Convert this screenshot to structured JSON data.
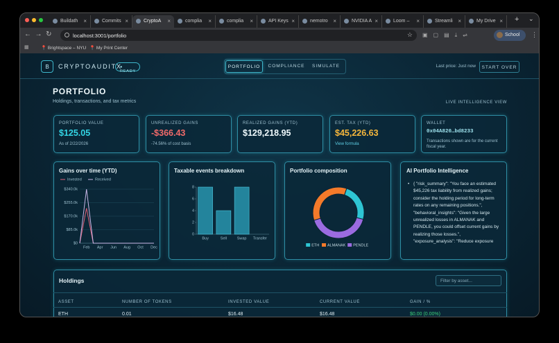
{
  "browser": {
    "tabs": [
      "Buildath",
      "Commits",
      "CryptoA",
      "complia",
      "complia",
      "API Keys",
      "nemotro",
      "NVIDIA A",
      "Loom –",
      "Streamli",
      "My Drive"
    ],
    "address": "localhost:3001/portfolio",
    "profile": "School",
    "bookmarks": [
      "Brightspace – NYU",
      "My Print Center"
    ]
  },
  "header": {
    "logo": "B",
    "brand": "CRYPTOAUDITX",
    "status": "READY",
    "nav": [
      "PORTFOLIO",
      "COMPLIANCE",
      "SIMULATE"
    ],
    "last_price": "Last price: Just now",
    "button": "START OVER"
  },
  "page": {
    "title": "PORTFOLIO",
    "subtitle": "Holdings, transactions, and tax metrics",
    "view_label": "LIVE INTELLIGENCE VIEW"
  },
  "cards": [
    {
      "label": "PORTFOLIO VALUE",
      "value": "$125.05",
      "note": "As of 2/22/2026"
    },
    {
      "label": "UNREALIZED GAINS",
      "value": "-$366.43",
      "note": "-74.56% of cost basis"
    },
    {
      "label": "REALIZED GAINS (YTD)",
      "value": "$129,218.95"
    },
    {
      "label": "EST. TAX (YTD)",
      "value": "$45,226.63",
      "note": "View formula"
    },
    {
      "label": "WALLET",
      "value": "0x04A820…bd8233",
      "note": "Transactions shown are for the current fiscal year."
    }
  ],
  "chart_data": [
    {
      "type": "line",
      "title": "Gains over time (YTD)",
      "categories": [
        null,
        "Feb",
        null,
        "Apr",
        null,
        "Jun",
        null,
        "Aug",
        null,
        "Oct",
        null,
        "Dec"
      ],
      "series": [
        {
          "name": "Invested",
          "color": "#e0607a",
          "values": [
            0,
            220000,
            0,
            0,
            0,
            0,
            0,
            0,
            0,
            0,
            0,
            0
          ]
        },
        {
          "name": "Received",
          "color": "#c9b8e8",
          "values": [
            0,
            340000,
            0,
            0,
            0,
            0,
            0,
            0,
            0,
            0,
            0,
            0
          ]
        }
      ],
      "ylim": [
        0,
        340000
      ],
      "yticks": [
        {
          "value": 0,
          "label": "$0"
        },
        {
          "value": 85000,
          "label": "$85.0k"
        },
        {
          "value": 170000,
          "label": "$170.0k"
        },
        {
          "value": 255000,
          "label": "$255.0k"
        },
        {
          "value": 340000,
          "label": "$340.0k"
        }
      ],
      "grid": true
    },
    {
      "type": "bar",
      "title": "Taxable events breakdown",
      "categories": [
        "Buy",
        "Sell",
        "Swap",
        "Transfer"
      ],
      "values": [
        8,
        4,
        8,
        0
      ],
      "color": "#23849c",
      "ylim": [
        0,
        8
      ],
      "yticks": [
        0,
        2,
        4,
        6,
        8
      ],
      "grid": false
    },
    {
      "type": "pie",
      "title": "Portfolio composition",
      "categories": [
        "ETH",
        "ALMANAK",
        "PENDLE"
      ],
      "values": [
        24,
        35,
        41
      ],
      "colors": [
        "#2ec5d3",
        "#f47a2a",
        "#9b6be0"
      ]
    }
  ],
  "intelligence": {
    "title": "AI Portfolio Intelligence",
    "text": "{ \"risk_summary\": \"You face an estimated $45,226 tax liability from realized gains; consider the holding period for long-term rates on any remaining positions.\", \"behavioral_insights\": \"Given the large unrealized losses in ALMANAK and PENDLE, you could offset current gains by realizing those losses.\", \"exposure_analysis\": \"Reduce exposure"
  },
  "holdings": {
    "title": "Holdings",
    "filter_placeholder": "Filter by asset...",
    "columns": [
      "ASSET",
      "NUMBER OF TOKENS",
      "INVESTED VALUE",
      "CURRENT VALUE",
      "GAIN / %"
    ],
    "rows": [
      [
        "ETH",
        "0.01",
        "$16.48",
        "$16.48",
        "$0.00 (0.00%)"
      ]
    ]
  }
}
